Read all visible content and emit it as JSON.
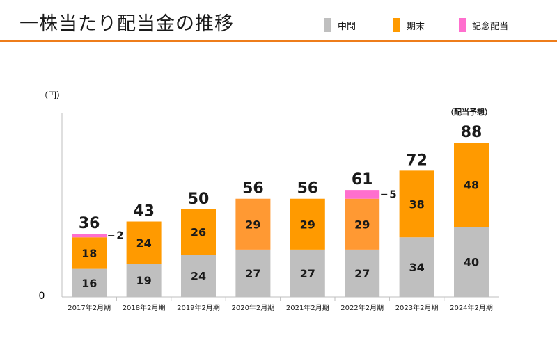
{
  "header": {
    "title": "一株当たり配当金の推移"
  },
  "chart_data": {
    "type": "bar",
    "stacked": true,
    "unit_label": "（円）",
    "zero_label": "0",
    "forecast_label": "（配当予想）",
    "ylim": [
      0,
      88
    ],
    "categories": [
      "2017年2月期",
      "2018年2月期",
      "2019年2月期",
      "2020年2月期",
      "2021年2月期",
      "2022年2月期",
      "2023年2月期",
      "2024年2月期"
    ],
    "series": [
      {
        "name": "中間",
        "color": "#bfbfbf",
        "values": [
          16,
          19,
          24,
          27,
          27,
          27,
          34,
          40
        ]
      },
      {
        "name": "期末",
        "color": "#ff9a00",
        "values": [
          18,
          24,
          26,
          29,
          29,
          29,
          38,
          48
        ]
      },
      {
        "name": "記念配当",
        "color": "#ff6fce",
        "values": [
          2,
          0,
          0,
          0,
          0,
          5,
          0,
          0
        ]
      }
    ],
    "totals": [
      36,
      43,
      50,
      56,
      56,
      61,
      72,
      88
    ],
    "period_colors": [
      "#ff9a00",
      "#ff9a00",
      "#ff9a00",
      "#ff9933",
      "#ff9a00",
      "#ff9933",
      "#ff9a00",
      "#ff9a00"
    ],
    "grid": false,
    "legend": "top-right"
  }
}
